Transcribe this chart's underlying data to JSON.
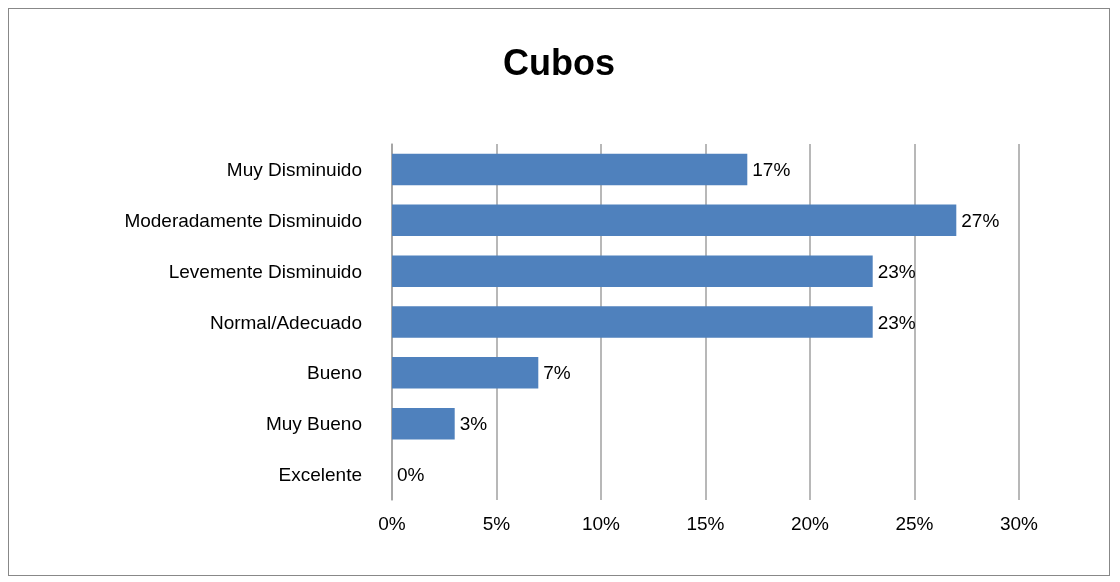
{
  "chart_data": {
    "type": "bar",
    "title": "Cubos",
    "orientation": "horizontal",
    "categories": [
      "Muy Disminuido",
      "Moderadamente Disminuido",
      "Levemente Disminuido",
      "Normal/Adecuado",
      "Bueno",
      "Muy Bueno",
      "Excelente"
    ],
    "values": [
      17,
      27,
      23,
      23,
      7,
      3,
      0
    ],
    "value_labels": [
      "17%",
      "27%",
      "23%",
      "23%",
      "7%",
      "3%",
      "0%"
    ],
    "color": "#4f81bd",
    "xlim": [
      0,
      30
    ],
    "xticks": [
      {
        "value": 0,
        "label": "0%"
      },
      {
        "value": 5,
        "label": "5%"
      },
      {
        "value": 10,
        "label": "10%"
      },
      {
        "value": 15,
        "label": "15%"
      },
      {
        "value": 20,
        "label": "20%"
      },
      {
        "value": 25,
        "label": "25%"
      },
      {
        "value": 30,
        "label": "30%"
      }
    ],
    "grid": "x"
  }
}
